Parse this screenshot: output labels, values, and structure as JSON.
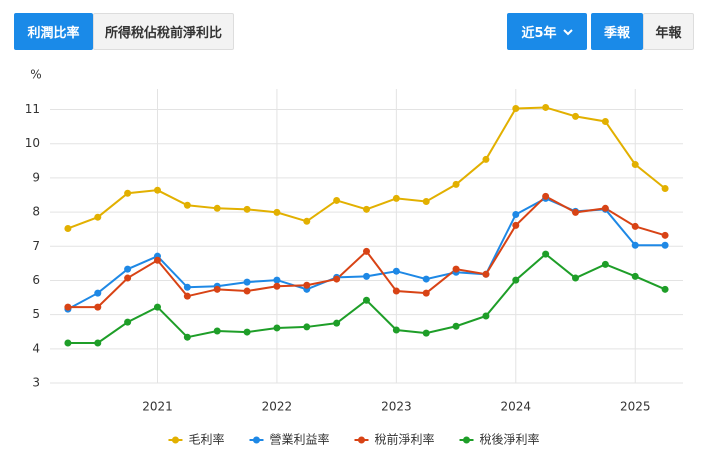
{
  "tabs": [
    "利潤比率",
    "所得稅佔稅前淨利比"
  ],
  "period": "近5年",
  "frequency": [
    "季報",
    "年報"
  ],
  "chart_data": {
    "type": "line",
    "y_label": "%",
    "x": [
      2020.25,
      2020.5,
      2020.75,
      2021,
      2021.25,
      2021.5,
      2021.75,
      2022,
      2022.25,
      2022.5,
      2022.75,
      2023,
      2023.25,
      2023.5,
      2023.75,
      2024,
      2024.25,
      2024.5,
      2024.75,
      2025,
      2025.25
    ],
    "xlim": [
      2020.1,
      2025.4
    ],
    "xticks": [
      2021,
      2022,
      2023,
      2024,
      2025
    ],
    "ylim": [
      3,
      11.6
    ],
    "yticks": [
      3,
      4,
      5,
      6,
      7,
      8,
      9,
      10,
      11
    ],
    "grid": true,
    "legend": "bottom",
    "series": [
      {
        "name": "毛利率",
        "color": "#e2b000",
        "values": [
          7.52,
          7.85,
          8.55,
          8.64,
          8.2,
          8.11,
          8.08,
          7.99,
          7.73,
          8.34,
          8.08,
          8.4,
          8.31,
          8.81,
          9.54,
          11.03,
          11.06,
          10.8,
          10.65,
          9.39,
          8.69
        ]
      },
      {
        "name": "營業利益率",
        "color": "#1e88e5",
        "values": [
          5.16,
          5.63,
          6.33,
          6.71,
          5.8,
          5.83,
          5.95,
          6.01,
          5.74,
          6.09,
          6.12,
          6.27,
          6.04,
          6.24,
          6.18,
          7.93,
          8.4,
          8.02,
          8.08,
          7.03,
          7.03
        ]
      },
      {
        "name": "稅前淨利率",
        "color": "#d84315",
        "values": [
          5.22,
          5.22,
          6.07,
          6.59,
          5.54,
          5.74,
          5.69,
          5.83,
          5.86,
          6.04,
          6.85,
          5.69,
          5.63,
          6.33,
          6.18,
          7.61,
          8.46,
          7.99,
          8.11,
          7.58,
          7.32
        ]
      },
      {
        "name": "稅後淨利率",
        "color": "#1e9e28",
        "values": [
          4.17,
          4.17,
          4.78,
          5.22,
          4.34,
          4.52,
          4.49,
          4.61,
          4.64,
          4.75,
          5.42,
          4.55,
          4.46,
          4.66,
          4.96,
          6.01,
          6.77,
          6.07,
          6.47,
          6.12,
          5.74
        ]
      }
    ]
  }
}
